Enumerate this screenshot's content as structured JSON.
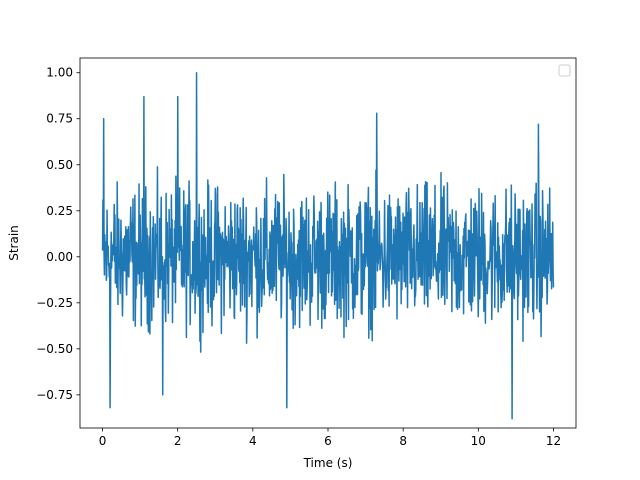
{
  "chart_data": {
    "type": "line",
    "title": "",
    "xlabel": "Time (s)",
    "ylabel": "Strain",
    "xlim": [
      -0.6,
      12.6
    ],
    "ylim": [
      -0.93,
      1.08
    ],
    "xticks": [
      0,
      2,
      4,
      6,
      8,
      10,
      12
    ],
    "xtick_labels": [
      "0",
      "2",
      "4",
      "6",
      "8",
      "10",
      "12"
    ],
    "yticks": [
      -0.75,
      -0.5,
      -0.25,
      0.0,
      0.25,
      0.5,
      0.75,
      1.0
    ],
    "ytick_labels": [
      "−0.75",
      "−0.50",
      "−0.25",
      "0.00",
      "0.25",
      "0.50",
      "0.75",
      "1.00"
    ],
    "grid": false,
    "legend": {
      "placement": "top-right",
      "entries": []
    },
    "series": [
      {
        "color": "#1f77b4",
        "x_start": 0,
        "x_end": 12,
        "num_points": 1200,
        "typical_range": [
          -0.37,
          0.47
        ],
        "peaks": [
          {
            "x": 0.03,
            "y": 0.75
          },
          {
            "x": 0.2,
            "y": -0.82
          },
          {
            "x": 1.1,
            "y": 0.87
          },
          {
            "x": 1.6,
            "y": -0.75
          },
          {
            "x": 2.0,
            "y": 0.87
          },
          {
            "x": 2.5,
            "y": 1.0
          },
          {
            "x": 4.9,
            "y": -0.82
          },
          {
            "x": 7.3,
            "y": 0.78
          },
          {
            "x": 10.9,
            "y": -0.88
          },
          {
            "x": 11.6,
            "y": 0.72
          }
        ]
      }
    ]
  }
}
